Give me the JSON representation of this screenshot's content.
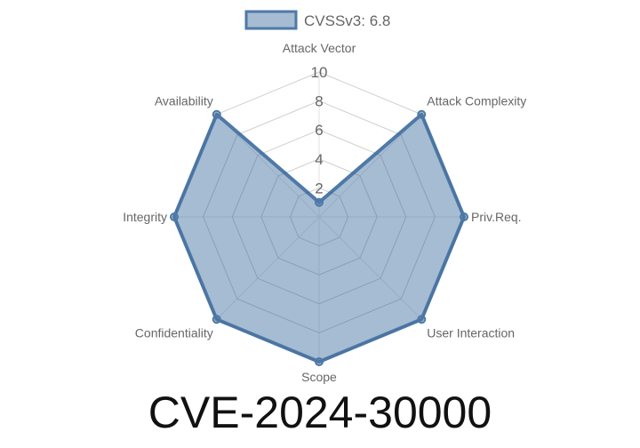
{
  "chart_data": {
    "type": "radar",
    "legend": {
      "label": "CVSSv3: 6.8",
      "placement": "top"
    },
    "categories": [
      "Attack Vector",
      "Attack Complexity",
      "Priv.Req.",
      "User Interaction",
      "Scope",
      "Confidentiality",
      "Integrity",
      "Availability"
    ],
    "series": [
      {
        "name": "CVSSv3: 6.8",
        "values": [
          1,
          10,
          10,
          10,
          10,
          10,
          10,
          10
        ]
      }
    ],
    "rlim": [
      0,
      10
    ],
    "ticks": [
      "2",
      "4",
      "6",
      "8",
      "10"
    ],
    "grid": true,
    "colors": {
      "stroke": "#4e79a7",
      "fill": "#4e79a7",
      "grid": "#e0e0e0"
    }
  },
  "title": "CVE-2024-30000"
}
